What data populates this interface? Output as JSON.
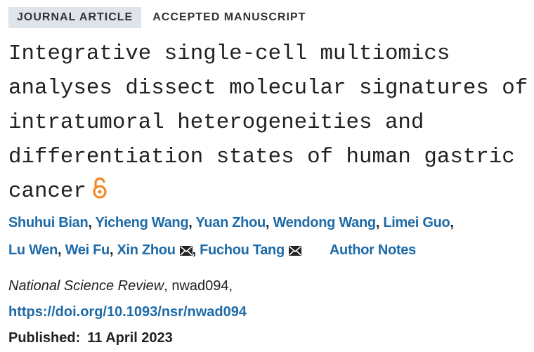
{
  "badges": [
    "JOURNAL ARTICLE",
    "ACCEPTED MANUSCRIPT"
  ],
  "title_lines": [
    "Integrative single-cell multiomics",
    "analyses dissect molecular signatures of",
    "intratumoral heterogeneities and",
    "differentiation states of human gastric",
    "cancer"
  ],
  "authors": [
    {
      "name": "Shuhui Bian",
      "corresponding": false
    },
    {
      "name": "Yicheng Wang",
      "corresponding": false
    },
    {
      "name": "Yuan Zhou",
      "corresponding": false
    },
    {
      "name": "Wendong Wang",
      "corresponding": false
    },
    {
      "name": "Limei Guo",
      "corresponding": false
    },
    {
      "name": "Lu Wen",
      "corresponding": false
    },
    {
      "name": "Wei Fu",
      "corresponding": false
    },
    {
      "name": "Xin Zhou",
      "corresponding": true
    },
    {
      "name": "Fuchou Tang",
      "corresponding": true
    }
  ],
  "author_notes": "Author Notes",
  "journal": "National Science Review",
  "article_id": "nwad094",
  "doi": "https://doi.org/10.1093/nsr/nwad094",
  "published_label": "Published:",
  "published_date": "11 April 2023"
}
